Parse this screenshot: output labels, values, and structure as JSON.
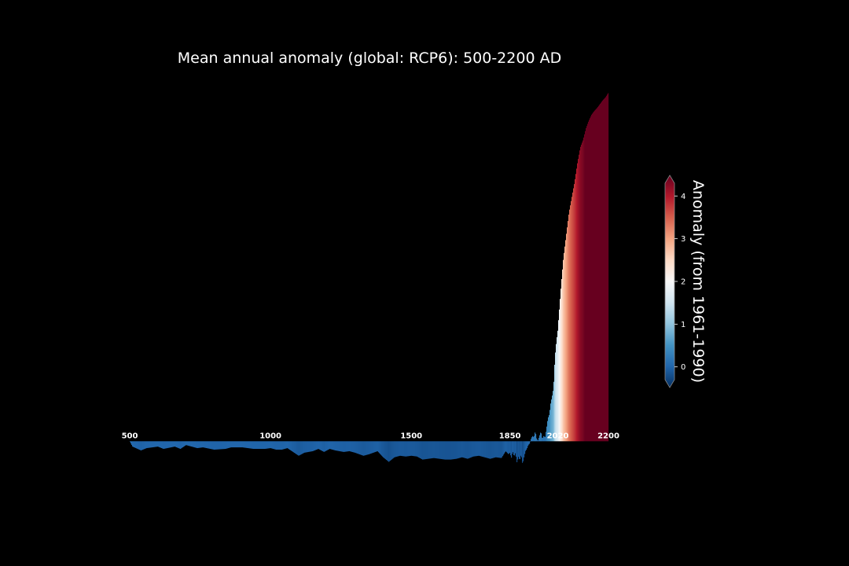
{
  "chart_data": {
    "type": "area",
    "title": "Mean annual anomaly (global: RCP6): 500-2200 AD",
    "x_ticks": [
      500,
      1000,
      1500,
      1850,
      2020,
      2200
    ],
    "xlim": [
      500,
      2200
    ],
    "ylim": [
      -0.2,
      4.9
    ],
    "baseline": 0.25,
    "series": [
      {
        "x": [
          500,
          510,
          540,
          560,
          600,
          620,
          660,
          680,
          700,
          740,
          760,
          800,
          840,
          860,
          900,
          940,
          960,
          980,
          1000,
          1020,
          1040,
          1060,
          1080,
          1100,
          1120,
          1150,
          1170,
          1190,
          1210,
          1230,
          1260,
          1280,
          1300,
          1330,
          1350,
          1380,
          1400,
          1420,
          1440,
          1460,
          1480,
          1500,
          1520,
          1540,
          1560,
          1580,
          1600,
          1620,
          1640,
          1660,
          1680,
          1700,
          1720,
          1740,
          1760,
          1780,
          1800,
          1820,
          1835,
          1845,
          1850,
          1855,
          1860,
          1865,
          1870,
          1875,
          1880,
          1885,
          1890,
          1895,
          1900,
          1905,
          1910,
          1915,
          1920,
          1925,
          1930,
          1935,
          1940,
          1945,
          1950,
          1955,
          1960,
          1965,
          1970,
          1975,
          1980,
          1985,
          1990,
          1995,
          2000,
          2005,
          2010,
          2015,
          2020,
          2030,
          2040,
          2050,
          2060,
          2070,
          2080,
          2090,
          2100,
          2110,
          2120,
          2130,
          2140,
          2150,
          2160,
          2170,
          2180,
          2190,
          2200
        ],
        "y": [
          0.25,
          0.18,
          0.13,
          0.16,
          0.18,
          0.15,
          0.18,
          0.15,
          0.2,
          0.16,
          0.17,
          0.14,
          0.15,
          0.17,
          0.17,
          0.15,
          0.15,
          0.15,
          0.16,
          0.14,
          0.14,
          0.16,
          0.11,
          0.06,
          0.1,
          0.12,
          0.15,
          0.11,
          0.15,
          0.13,
          0.11,
          0.12,
          0.1,
          0.06,
          0.08,
          0.12,
          0.04,
          -0.02,
          0.04,
          0.06,
          0.05,
          0.06,
          0.05,
          0.01,
          0.02,
          0.03,
          0.02,
          0.01,
          0.01,
          0.02,
          0.04,
          0.02,
          0.05,
          0.06,
          0.04,
          0.02,
          0.04,
          0.03,
          0.12,
          0.08,
          0.1,
          0.03,
          0.12,
          0.05,
          0.1,
          -0.03,
          0.05,
          0.0,
          0.08,
          -0.05,
          0.04,
          0.12,
          0.15,
          0.2,
          0.22,
          0.28,
          0.32,
          0.3,
          0.38,
          0.28,
          0.26,
          0.32,
          0.38,
          0.28,
          0.32,
          0.3,
          0.42,
          0.55,
          0.6,
          0.75,
          0.84,
          0.95,
          1.35,
          1.55,
          1.7,
          2.2,
          2.65,
          2.95,
          3.25,
          3.45,
          3.65,
          3.9,
          4.1,
          4.2,
          4.35,
          4.45,
          4.53,
          4.58,
          4.62,
          4.67,
          4.72,
          4.76,
          4.82
        ]
      }
    ],
    "colorbar": {
      "label": "Anomaly (from 1961-1990)",
      "ticks": [
        "0",
        "1",
        "2",
        "3",
        "4"
      ],
      "min": -0.3,
      "max": 4.3,
      "colors": [
        "#053061",
        "#2166ac",
        "#4393c3",
        "#92c5de",
        "#d1e5f0",
        "#f7f7f7",
        "#fddbc7",
        "#f4a582",
        "#d6604d",
        "#b2182b",
        "#67001f"
      ]
    }
  }
}
